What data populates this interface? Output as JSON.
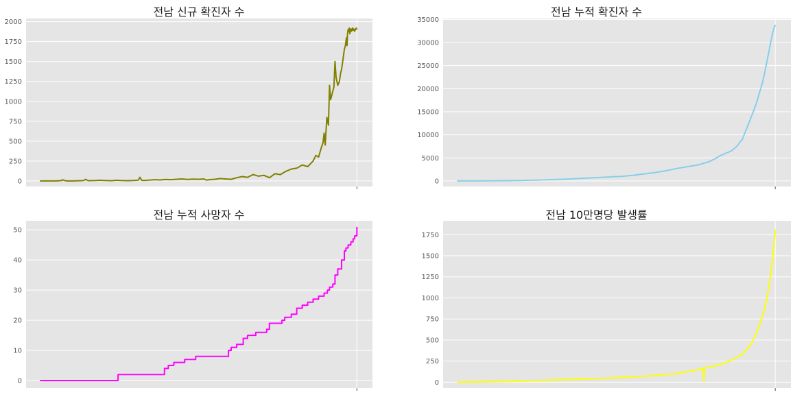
{
  "chart_data": [
    {
      "type": "line",
      "title": "전남 신규 확진자 수",
      "color": "#808000",
      "ylim": [
        -70,
        2040
      ],
      "yticks": [
        0,
        250,
        500,
        750,
        1000,
        1250,
        1500,
        1750,
        2000
      ],
      "grid": true,
      "x_index": [
        0,
        10,
        20,
        30,
        40,
        41,
        45,
        50,
        60,
        70,
        80,
        84,
        86,
        90,
        100,
        110,
        120,
        130,
        135,
        140,
        150,
        160,
        170,
        180,
        183,
        186,
        190,
        200,
        210,
        220,
        230,
        240,
        250,
        260,
        270,
        280,
        290,
        300,
        305,
        310,
        320,
        330,
        340,
        350,
        360,
        370,
        380,
        390,
        400,
        410,
        420,
        430,
        440,
        450,
        460,
        470,
        480,
        490,
        500,
        505,
        510,
        515,
        518,
        520,
        522,
        525,
        528,
        530,
        532,
        535,
        538,
        540,
        542,
        545,
        548,
        550,
        552,
        555,
        557,
        559,
        560,
        561,
        562,
        563,
        564,
        565,
        566,
        567,
        568,
        569,
        570,
        571,
        572,
        573,
        574,
        575,
        576,
        577,
        578,
        579,
        580
      ],
      "values": [
        0,
        0,
        0,
        0,
        5,
        15,
        5,
        0,
        0,
        2,
        5,
        20,
        8,
        3,
        5,
        8,
        6,
        3,
        5,
        8,
        5,
        3,
        5,
        10,
        45,
        8,
        5,
        10,
        15,
        12,
        18,
        15,
        20,
        25,
        18,
        22,
        20,
        25,
        10,
        15,
        20,
        30,
        25,
        20,
        40,
        55,
        45,
        80,
        60,
        70,
        40,
        90,
        80,
        120,
        150,
        160,
        200,
        180,
        250,
        320,
        300,
        420,
        480,
        600,
        450,
        800,
        700,
        1200,
        1020,
        1100,
        1180,
        1500,
        1300,
        1200,
        1250,
        1350,
        1400,
        1550,
        1650,
        1700,
        1750,
        1800,
        1700,
        1850,
        1900,
        1880,
        1920,
        1850,
        1900,
        1910,
        1880,
        1900,
        1920,
        1890,
        1910,
        1900,
        1880,
        1900,
        1910,
        1920,
        1900
      ]
    },
    {
      "type": "line",
      "title": "전남 누적 확진자 수",
      "color": "#87ceeb",
      "ylim": [
        -1200,
        35200
      ],
      "yticks": [
        0,
        5000,
        10000,
        15000,
        20000,
        25000,
        30000,
        35000
      ],
      "grid": true,
      "x_index": [
        0,
        50,
        100,
        150,
        200,
        250,
        300,
        320,
        340,
        360,
        380,
        400,
        420,
        440,
        460,
        470,
        480,
        490,
        500,
        510,
        520,
        525,
        530,
        535,
        540,
        543,
        546,
        548,
        550,
        552,
        554,
        556,
        558,
        560,
        562,
        564,
        566,
        568,
        570,
        572,
        574,
        576,
        578,
        580
      ],
      "values": [
        0,
        30,
        80,
        200,
        400,
        700,
        1000,
        1200,
        1500,
        1800,
        2200,
        2700,
        3100,
        3500,
        4200,
        4800,
        5500,
        6000,
        6500,
        7500,
        9000,
        10500,
        12000,
        13500,
        15000,
        16000,
        17000,
        17800,
        18600,
        19400,
        20200,
        21000,
        22000,
        23000,
        24200,
        25400,
        26600,
        27800,
        29000,
        30200,
        31400,
        32400,
        33200,
        33800
      ]
    },
    {
      "type": "line",
      "title": "전남 누적 사망자 수",
      "color": "#ff00ff",
      "ylim": [
        -2.5,
        53
      ],
      "yticks": [
        0,
        10,
        20,
        30,
        40,
        50
      ],
      "grid": true,
      "step": true,
      "x_index": [
        0,
        140,
        143,
        225,
        228,
        235,
        245,
        265,
        285,
        330,
        345,
        350,
        360,
        372,
        380,
        385,
        395,
        415,
        420,
        443,
        448,
        460,
        470,
        480,
        490,
        500,
        510,
        520,
        526,
        530,
        536,
        540,
        545,
        552,
        557,
        560,
        564,
        569,
        573,
        576,
        580
      ],
      "values": [
        0,
        0,
        2,
        2,
        4,
        5,
        6,
        7,
        8,
        8,
        10,
        11,
        12,
        14,
        15,
        15,
        16,
        17,
        19,
        20,
        21,
        22,
        24,
        25,
        26,
        27,
        28,
        29,
        30,
        31,
        32,
        35,
        37,
        40,
        43,
        44,
        45,
        46,
        47,
        48,
        51
      ]
    },
    {
      "type": "line",
      "title": "전남 10만명당 발생률",
      "color": "#ffff00",
      "ylim": [
        -70,
        1915
      ],
      "yticks": [
        0,
        250,
        500,
        750,
        1000,
        1250,
        1500,
        1750
      ],
      "grid": true,
      "x_index": [
        0,
        50,
        100,
        150,
        200,
        250,
        300,
        340,
        400,
        440,
        449,
        450,
        451,
        452,
        460,
        480,
        500,
        520,
        530,
        540,
        550,
        560,
        565,
        570,
        575,
        578,
        580
      ],
      "values": [
        0,
        5,
        10,
        20,
        30,
        40,
        55,
        70,
        100,
        150,
        165,
        10,
        160,
        170,
        180,
        210,
        260,
        330,
        400,
        500,
        650,
        850,
        1000,
        1200,
        1450,
        1650,
        1810
      ]
    }
  ]
}
